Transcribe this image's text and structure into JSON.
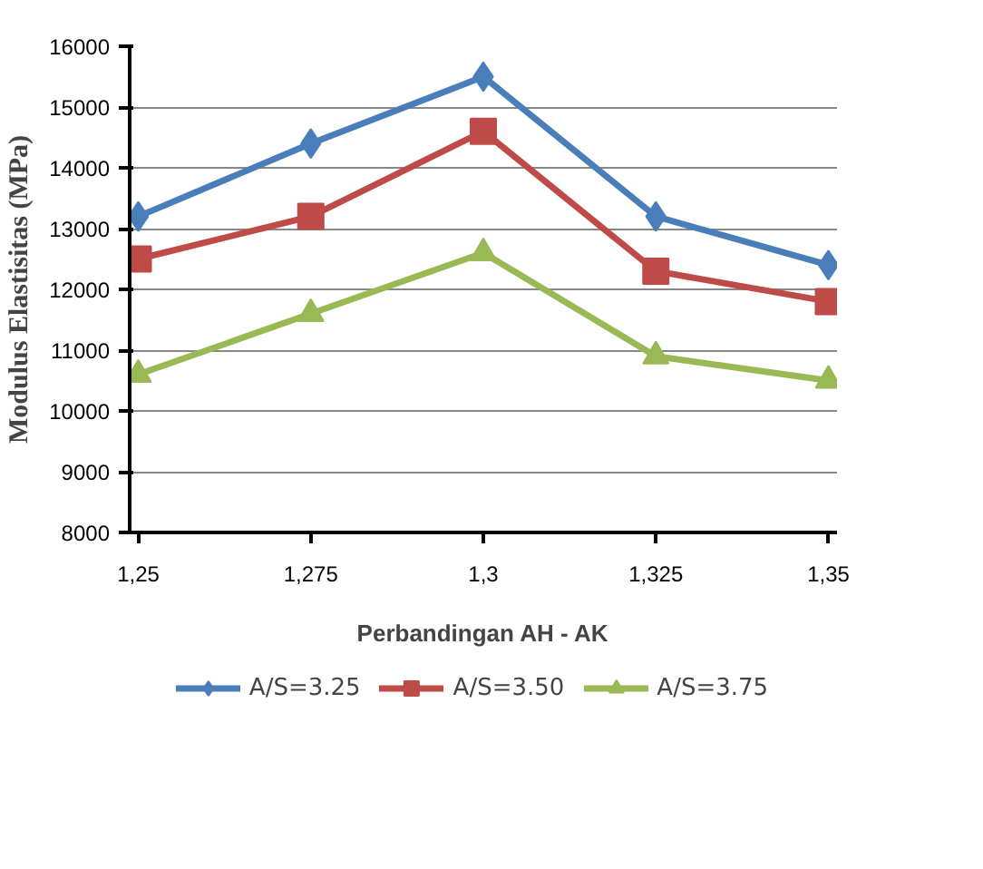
{
  "chart_data": {
    "type": "line",
    "xlabel": "Perbandingan AH - AK",
    "ylabel": "Modulus Elastisitas (MPa)",
    "categories": [
      "1,25",
      "1,275",
      "1,3",
      "1,325",
      "1,35"
    ],
    "series": [
      {
        "name": "A/S=3.25",
        "color": "#4a7ebb",
        "marker": "diamond",
        "values": [
          13200,
          14400,
          15500,
          13200,
          12400
        ]
      },
      {
        "name": "A/S=3.50",
        "color": "#be4b48",
        "marker": "square",
        "values": [
          12500,
          13200,
          14600,
          12300,
          11800
        ]
      },
      {
        "name": "A/S=3.75",
        "color": "#98b954",
        "marker": "triangle",
        "values": [
          10600,
          11600,
          12600,
          10900,
          10500
        ]
      }
    ],
    "ylim": [
      8000,
      16000
    ],
    "yticks": [
      8000,
      9000,
      10000,
      11000,
      12000,
      13000,
      14000,
      15000,
      16000
    ],
    "grid": "y",
    "legend": "bottom"
  }
}
